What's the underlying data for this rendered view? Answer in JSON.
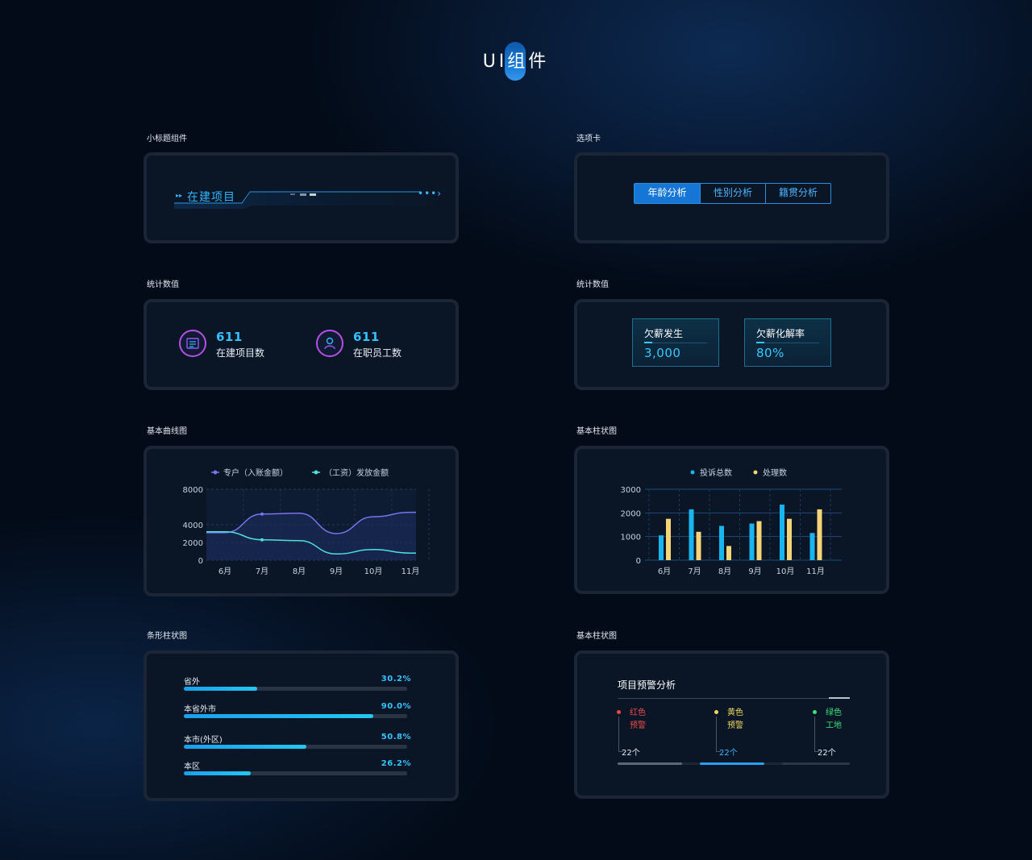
{
  "page": {
    "title": "UI组件"
  },
  "sections": {
    "subtitle": "小标题组件",
    "tabs": "选项卡",
    "stats_left": "统计数值",
    "stats_right": "统计数值",
    "line_chart": "基本曲线图",
    "bar_chart": "基本柱状图",
    "progress": "条形柱状图",
    "warning": "基本柱状图"
  },
  "subtitle_component": {
    "text": "在建项目",
    "more": "•••›",
    "arrow_icon": "play-arrow-icon"
  },
  "tabs": {
    "items": [
      "年龄分析",
      "性别分析",
      "籍贯分析"
    ],
    "active": 0
  },
  "stats": [
    {
      "value": "611",
      "label": "在建项目数",
      "icon": "project-list-icon"
    },
    {
      "value": "611",
      "label": "在职员工数",
      "icon": "employee-icon"
    }
  ],
  "kpis": [
    {
      "label": "欠薪发生",
      "value": "3,000"
    },
    {
      "label": "欠薪化解率",
      "value": "80%"
    }
  ],
  "line_chart": {
    "chart_data": {
      "type": "line",
      "categories": [
        "6月",
        "7月",
        "8月",
        "9月",
        "10月",
        "11月"
      ],
      "ylim": [
        0,
        8000
      ],
      "yticks": [
        "8000",
        "4000",
        "2000",
        "0"
      ],
      "series": [
        {
          "name": "专户（入账金额）",
          "color": "#7a74ee",
          "values": [
            3100,
            5200,
            5300,
            3000,
            4900,
            5400
          ]
        },
        {
          "name": "（工资）发放金额",
          "color": "#4ee0d6",
          "values": [
            3200,
            2300,
            2200,
            700,
            1200,
            800
          ]
        }
      ]
    }
  },
  "bar_chart": {
    "chart_data": {
      "type": "bar",
      "categories": [
        "6月",
        "7月",
        "8月",
        "9月",
        "10月",
        "11月"
      ],
      "ylim": [
        0,
        3000
      ],
      "yticks": [
        "3000",
        "2000",
        "1000",
        "0"
      ],
      "series": [
        {
          "name": "投诉总数",
          "color": "#1ab4ee",
          "values": [
            1050,
            2150,
            1450,
            1550,
            2350,
            1150
          ]
        },
        {
          "name": "处理数",
          "color": "#f6d477",
          "values": [
            1750,
            1200,
            600,
            1650,
            1750,
            2150
          ]
        }
      ]
    }
  },
  "progress": [
    {
      "name": "省外",
      "pct": "30.2%",
      "fill": 0.33
    },
    {
      "name": "本省外市",
      "pct": "90.0%",
      "fill": 0.85
    },
    {
      "name": "本市(外区)",
      "pct": "50.8%",
      "fill": 0.55
    },
    {
      "name": "本区",
      "pct": "26.2%",
      "fill": 0.3
    }
  ],
  "warning": {
    "title": "项目预警分析",
    "items": [
      {
        "t1": "红色",
        "t2": "预警",
        "count": "22个",
        "color": "#ee4a4a"
      },
      {
        "t1": "黄色",
        "t2": "预警",
        "count": "22个",
        "color": "#f2d860"
      },
      {
        "t1": "绿色",
        "t2": "工地",
        "count": "22个",
        "color": "#3fe07a"
      }
    ]
  }
}
